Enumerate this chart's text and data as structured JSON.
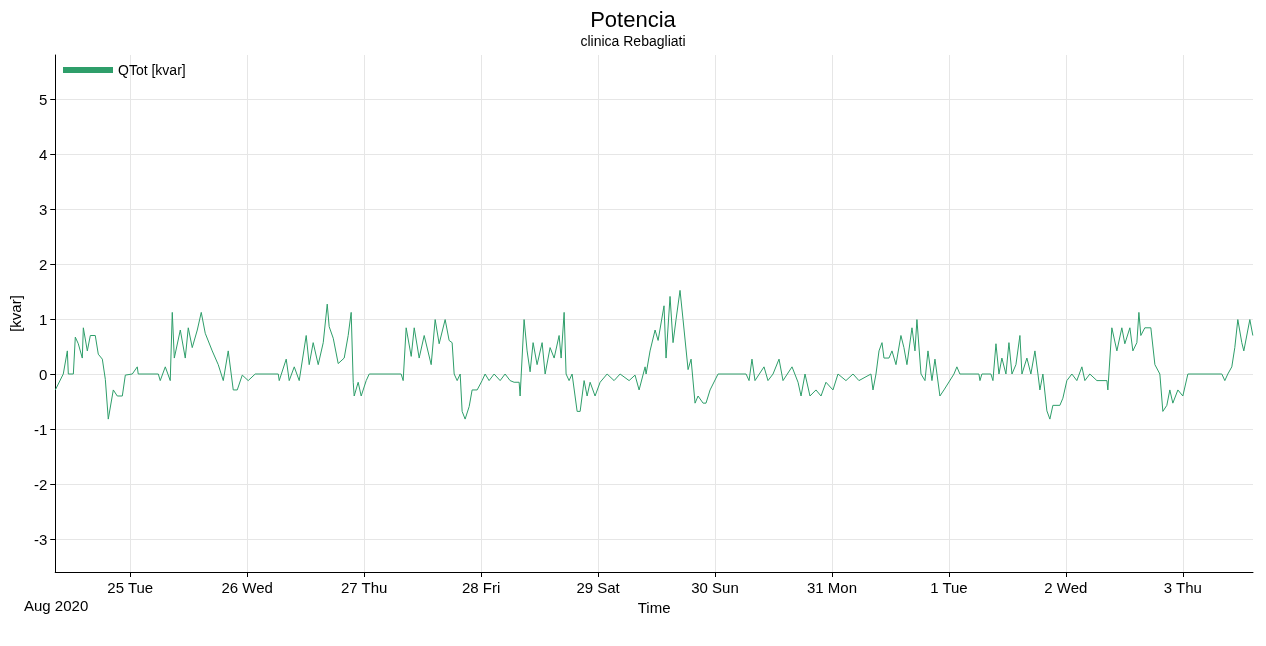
{
  "chart_data": {
    "type": "line",
    "title": "Potencia",
    "subtitle": "clinica Rebagliati",
    "xlabel": "Time",
    "ylabel": "[kvar]",
    "annotations": [
      "Aug 2020"
    ],
    "xlim": [
      "2020-08-24T08:36",
      "2020-09-03T14:24"
    ],
    "xticks": [
      {
        "value": "2020-08-25",
        "label": "25 Tue"
      },
      {
        "value": "2020-08-26",
        "label": "26 Wed"
      },
      {
        "value": "2020-08-27",
        "label": "27 Thu"
      },
      {
        "value": "2020-08-28",
        "label": "28 Fri"
      },
      {
        "value": "2020-08-29",
        "label": "29 Sat"
      },
      {
        "value": "2020-08-30",
        "label": "30 Sun"
      },
      {
        "value": "2020-08-31",
        "label": "31 Mon"
      },
      {
        "value": "2020-09-01",
        "label": "1 Tue"
      },
      {
        "value": "2020-09-02",
        "label": "2 Wed"
      },
      {
        "value": "2020-09-03",
        "label": "3 Thu"
      }
    ],
    "ylim": [
      -3.6,
      5.8
    ],
    "yticks": [
      -3,
      -2,
      -1,
      0,
      1,
      2,
      3,
      4,
      5
    ],
    "grid": true,
    "legend": "top left",
    "marker": "none",
    "line_style": "solid",
    "x": [
      "2020-08-24T08:37",
      "2020-08-24T10:15",
      "2020-08-24T11:05",
      "2020-08-24T11:17",
      "2020-08-24T12:19",
      "2020-08-24T12:43",
      "2020-08-24T13:20",
      "2020-08-24T14:09",
      "2020-08-24T14:22",
      "2020-08-24T15:11",
      "2020-08-24T15:48",
      "2020-08-24T16:49",
      "2020-08-24T17:26",
      "2020-08-24T18:16",
      "2020-08-24T18:53",
      "2020-08-24T19:29",
      "2020-08-24T20:31",
      "2020-08-24T21:20",
      "2020-08-24T22:22",
      "2020-08-24T22:59",
      "2020-08-25T00:25",
      "2020-08-25T01:26",
      "2020-08-25T01:38",
      "2020-08-25T05:45",
      "2020-08-25T06:09",
      "2020-08-25T07:11",
      "2020-08-25T08:12",
      "2020-08-25T08:37",
      "2020-08-25T09:02",
      "2020-08-25T10:16",
      "2020-08-25T11:17",
      "2020-08-25T11:54",
      "2020-08-25T12:43",
      "2020-08-25T13:45",
      "2020-08-25T14:34",
      "2020-08-25T15:23",
      "2020-08-25T16:49",
      "2020-08-25T18:03",
      "2020-08-25T19:05",
      "2020-08-25T20:06",
      "2020-08-25T21:08",
      "2020-08-25T21:57",
      "2020-08-25T22:59",
      "2020-08-26T00:12",
      "2020-08-26T01:38",
      "2020-08-26T06:22",
      "2020-08-26T06:34",
      "2020-08-26T08:00",
      "2020-08-26T08:37",
      "2020-08-26T09:39",
      "2020-08-26T10:40",
      "2020-08-26T12:06",
      "2020-08-26T12:43",
      "2020-08-26T13:32",
      "2020-08-26T14:34",
      "2020-08-26T15:36",
      "2020-08-26T16:25",
      "2020-08-26T16:49",
      "2020-08-26T17:39",
      "2020-08-26T18:40",
      "2020-08-26T19:54",
      "2020-08-26T20:43",
      "2020-08-26T21:20",
      "2020-08-26T21:45",
      "2020-08-26T21:57",
      "2020-08-26T22:46",
      "2020-08-26T23:23",
      "2020-08-27T00:25",
      "2020-08-27T01:02",
      "2020-08-27T07:35",
      "2020-08-27T08:00",
      "2020-08-27T08:37",
      "2020-08-27T09:39",
      "2020-08-27T10:16",
      "2020-08-27T11:17",
      "2020-08-27T12:19",
      "2020-08-27T13:45",
      "2020-08-27T14:34",
      "2020-08-27T15:23",
      "2020-08-27T16:37",
      "2020-08-27T17:26",
      "2020-08-27T18:03",
      "2020-08-27T18:28",
      "2020-08-27T19:05",
      "2020-08-27T19:42",
      "2020-08-27T20:06",
      "2020-08-27T20:43",
      "2020-08-27T21:33",
      "2020-08-27T22:09",
      "2020-08-27T23:11",
      "2020-08-28T00:12",
      "2020-08-28T00:49",
      "2020-08-28T01:38",
      "2020-08-28T02:40",
      "2020-08-28T03:54",
      "2020-08-28T04:55",
      "2020-08-28T05:57",
      "2020-08-28T06:46",
      "2020-08-28T07:48",
      "2020-08-28T08:00",
      "2020-08-28T08:49",
      "2020-08-28T09:26",
      "2020-08-28T10:03",
      "2020-08-28T10:40",
      "2020-08-28T11:29",
      "2020-08-28T12:31",
      "2020-08-28T13:08",
      "2020-08-28T14:09",
      "2020-08-28T14:59",
      "2020-08-28T16:00",
      "2020-08-28T16:25",
      "2020-08-28T17:02",
      "2020-08-28T17:26",
      "2020-08-28T18:03",
      "2020-08-28T18:40",
      "2020-08-28T19:42",
      "2020-08-28T20:19",
      "2020-08-28T21:08",
      "2020-08-28T21:45",
      "2020-08-28T22:22",
      "2020-08-28T23:23",
      "2020-08-29T00:25",
      "2020-08-29T01:51",
      "2020-08-29T03:17",
      "2020-08-29T04:31",
      "2020-08-29T06:22",
      "2020-08-29T07:35",
      "2020-08-29T08:25",
      "2020-08-29T09:39",
      "2020-08-29T09:51",
      "2020-08-29T10:40",
      "2020-08-29T11:42",
      "2020-08-29T12:19",
      "2020-08-29T13:32",
      "2020-08-29T13:57",
      "2020-08-29T14:46",
      "2020-08-29T15:23",
      "2020-08-29T16:00",
      "2020-08-29T16:49",
      "2020-08-29T17:26",
      "2020-08-29T18:28",
      "2020-08-29T19:05",
      "2020-08-29T19:54",
      "2020-08-29T20:31",
      "2020-08-29T21:33",
      "2020-08-29T22:09",
      "2020-08-29T22:59",
      "2020-08-30T00:37",
      "2020-08-30T06:22",
      "2020-08-30T06:59",
      "2020-08-30T07:35",
      "2020-08-30T08:12",
      "2020-08-30T10:03",
      "2020-08-30T10:52",
      "2020-08-30T11:54",
      "2020-08-30T13:08",
      "2020-08-30T13:57",
      "2020-08-30T15:48",
      "2020-08-30T17:02",
      "2020-08-30T17:39",
      "2020-08-30T18:28",
      "2020-08-30T19:29",
      "2020-08-30T20:43",
      "2020-08-30T21:45",
      "2020-08-30T22:46",
      "2020-08-31T00:12",
      "2020-08-31T01:14",
      "2020-08-31T02:52",
      "2020-08-31T04:19",
      "2020-08-31T05:32",
      "2020-08-31T08:00",
      "2020-08-31T08:25",
      "2020-08-31T09:02",
      "2020-08-31T09:39",
      "2020-08-31T10:16",
      "2020-08-31T10:40",
      "2020-08-31T11:42",
      "2020-08-31T12:19",
      "2020-08-31T13:08",
      "2020-08-31T14:09",
      "2020-08-31T14:46",
      "2020-08-31T15:23",
      "2020-08-31T16:25",
      "2020-08-31T17:02",
      "2020-08-31T17:26",
      "2020-08-31T18:16",
      "2020-08-31T19:05",
      "2020-08-31T19:42",
      "2020-08-31T20:31",
      "2020-08-31T21:08",
      "2020-08-31T22:09",
      "2020-08-31T22:59",
      "2020-09-01T01:02",
      "2020-09-01T01:38",
      "2020-09-01T02:15",
      "2020-09-01T06:09",
      "2020-09-01T06:22",
      "2020-09-01T06:46",
      "2020-09-01T08:37",
      "2020-09-01T09:02",
      "2020-09-01T09:39",
      "2020-09-01T10:16",
      "2020-09-01T10:52",
      "2020-09-01T11:42",
      "2020-09-01T12:19",
      "2020-09-01T12:56",
      "2020-09-01T13:45",
      "2020-09-01T14:34",
      "2020-09-01T14:59",
      "2020-09-01T16:00",
      "2020-09-01T16:49",
      "2020-09-01T17:39",
      "2020-09-01T18:16",
      "2020-09-01T18:40",
      "2020-09-01T19:17",
      "2020-09-01T20:06",
      "2020-09-01T20:43",
      "2020-09-01T21:20",
      "2020-09-01T22:46",
      "2020-09-01T23:23",
      "2020-09-02T00:12",
      "2020-09-02T01:14",
      "2020-09-02T02:15",
      "2020-09-02T03:17",
      "2020-09-02T03:54",
      "2020-09-02T04:55",
      "2020-09-02T06:22",
      "2020-09-02T08:25",
      "2020-09-02T08:37",
      "2020-09-02T09:26",
      "2020-09-02T10:28",
      "2020-09-02T11:29",
      "2020-09-02T12:06",
      "2020-09-02T13:08",
      "2020-09-02T13:45",
      "2020-09-02T14:34",
      "2020-09-02T14:59",
      "2020-09-02T15:23",
      "2020-09-02T16:12",
      "2020-09-02T17:26",
      "2020-09-02T18:16",
      "2020-09-02T19:17",
      "2020-09-02T19:54",
      "2020-09-02T20:43",
      "2020-09-02T21:20",
      "2020-09-02T21:57",
      "2020-09-02T22:59",
      "2020-09-03T00:00",
      "2020-09-03T01:02",
      "2020-09-03T08:00",
      "2020-09-03T08:37",
      "2020-09-03T09:14",
      "2020-09-03T10:03",
      "2020-09-03T10:40",
      "2020-09-03T11:17",
      "2020-09-03T12:06",
      "2020-09-03T12:31",
      "2020-09-03T13:45",
      "2020-09-03T14:22"
    ],
    "series": [
      {
        "name": "QTot [kvar]",
        "color": "#2e9e6a",
        "values": [
          -0.29,
          0,
          0.42,
          0,
          0,
          0.67,
          0.55,
          0.29,
          0.84,
          0.42,
          0.7,
          0.7,
          0.36,
          0.27,
          -0.1,
          -0.82,
          -0.29,
          -0.4,
          -0.4,
          -0.02,
          0,
          0.13,
          0,
          0,
          -0.12,
          0.13,
          -0.12,
          1.12,
          0.29,
          0.8,
          0.29,
          0.84,
          0.48,
          0.8,
          1.12,
          0.74,
          0.42,
          0.17,
          -0.12,
          0.42,
          -0.29,
          -0.29,
          -0.02,
          -0.12,
          0,
          0,
          -0.12,
          0.27,
          -0.12,
          0.13,
          -0.12,
          0.7,
          0.17,
          0.57,
          0.17,
          0.57,
          1.27,
          0.86,
          0.65,
          0.19,
          0.29,
          0.7,
          1.12,
          -0.15,
          -0.4,
          -0.15,
          -0.4,
          -0.12,
          0,
          0,
          -0.12,
          0.84,
          0.32,
          0.84,
          0.29,
          0.7,
          0.17,
          0.99,
          0.55,
          0.99,
          0.61,
          0.57,
          0,
          -0.12,
          0,
          -0.68,
          -0.82,
          -0.59,
          -0.29,
          -0.29,
          -0.12,
          0,
          -0.12,
          0,
          -0.12,
          0,
          -0.12,
          -0.15,
          -0.15,
          -0.4,
          0.99,
          0.42,
          0.04,
          0.57,
          0.17,
          0.57,
          0,
          0.48,
          0.29,
          0.7,
          0.29,
          1.12,
          0,
          -0.12,
          0,
          -0.68,
          -0.68,
          -0.12,
          -0.4,
          -0.15,
          -0.4,
          -0.15,
          0,
          -0.12,
          0,
          -0.12,
          -0.02,
          -0.29,
          0.13,
          0,
          0.42,
          0.8,
          0.61,
          1.24,
          0.29,
          1.41,
          0.57,
          0.99,
          1.52,
          0.99,
          0.08,
          0.27,
          -0.53,
          -0.4,
          -0.53,
          -0.53,
          -0.29,
          0,
          0,
          -0.12,
          0.27,
          -0.12,
          0.13,
          -0.12,
          0,
          0.27,
          -0.12,
          0.13,
          -0.15,
          -0.4,
          0,
          -0.4,
          -0.29,
          -0.4,
          -0.15,
          -0.29,
          0,
          -0.12,
          0,
          -0.12,
          0,
          -0.29,
          0,
          0.42,
          0.57,
          0.29,
          0.29,
          0.42,
          0.17,
          0.7,
          0.48,
          0.17,
          0.84,
          0.42,
          0.99,
          0,
          -0.12,
          0.42,
          -0.12,
          0.27,
          -0.4,
          -0.29,
          0,
          0.13,
          0,
          0,
          -0.12,
          0,
          0,
          -0.12,
          0.55,
          0,
          0.29,
          0,
          0.57,
          0,
          0.17,
          0.7,
          0,
          0.29,
          0,
          0.42,
          0,
          -0.29,
          0,
          -0.67,
          -0.82,
          -0.57,
          -0.57,
          -0.44,
          -0.12,
          0,
          -0.12,
          0.13,
          -0.12,
          0,
          -0.12,
          -0.12,
          -0.29,
          0.84,
          0.42,
          0.84,
          0.55,
          0.84,
          0.42,
          0.57,
          1.12,
          0.7,
          0.84,
          0.84,
          0.17,
          0,
          -0.68,
          -0.57,
          -0.29,
          -0.53,
          -0.29,
          -0.4,
          0,
          0,
          -0.12,
          0,
          0.13,
          0.48,
          0.99,
          0.57,
          0.42,
          0.99,
          0.7
        ]
      }
    ]
  }
}
